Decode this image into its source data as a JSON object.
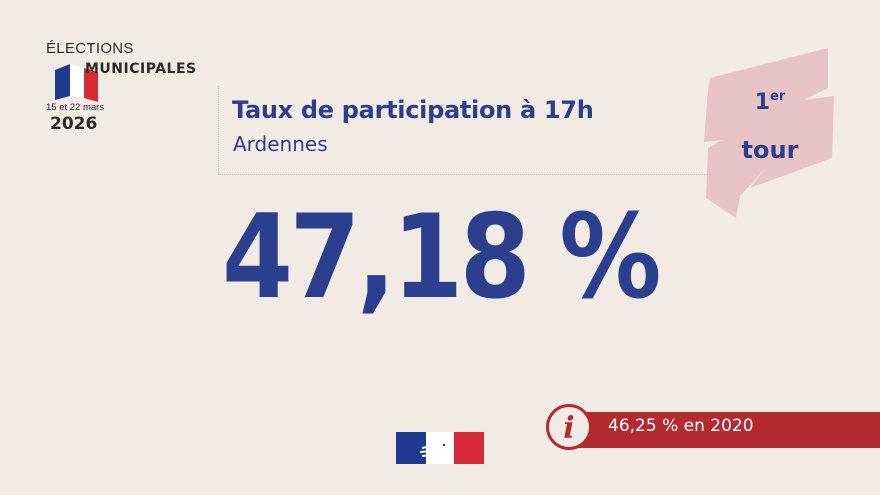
{
  "logo": {
    "elections": "ÉLECTIONS",
    "municipales": "MUNICIPALES",
    "dates": "15 et 22 mars",
    "year": "2026",
    "flag_colors": [
      "#1f3b8f",
      "#ffffff",
      "#d62b37"
    ]
  },
  "header": {
    "title": "Taux de participation à 17h",
    "subtitle": "Ardennes"
  },
  "badge": {
    "number": "1",
    "superscript": "er",
    "word": "tour",
    "color": "#e8c3c6"
  },
  "main": {
    "participation": "47,18 %"
  },
  "info": {
    "icon": "info-icon",
    "text": "46,25 % en 2020",
    "color": "#b32a2f"
  },
  "footer": {
    "emblem": "marianne-emblem-icon"
  },
  "colors": {
    "background": "#f1ebe3",
    "primary_blue": "#2c3f8f",
    "accent_red": "#b32a2f"
  }
}
